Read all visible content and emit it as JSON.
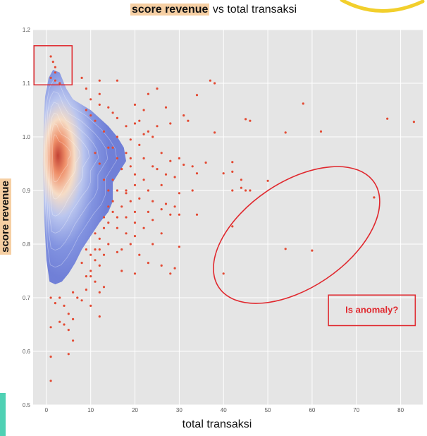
{
  "chart_data": {
    "type": "scatter",
    "title_highlight": "score revenue",
    "title_rest": "vs total transaksi",
    "xlabel": "total transaksi",
    "ylabel": "score revenue",
    "xlim": [
      -3,
      85
    ],
    "ylim": [
      0.5,
      1.2
    ],
    "xticks": [
      0,
      10,
      20,
      30,
      40,
      50,
      60,
      70,
      80
    ],
    "yticks": [
      0.5,
      0.6,
      0.7,
      0.8,
      0.9,
      1.0,
      1.1,
      1.2
    ],
    "density_overlay": "kde",
    "points": [
      [
        1,
        1.15
      ],
      [
        1.5,
        1.14
      ],
      [
        2,
        1.13
      ],
      [
        2,
        1.12
      ],
      [
        1,
        1.11
      ],
      [
        2,
        1.105
      ],
      [
        3,
        1.1
      ],
      [
        8,
        1.11
      ],
      [
        12,
        1.105
      ],
      [
        16,
        1.105
      ],
      [
        37,
        1.105
      ],
      [
        38,
        1.1
      ],
      [
        34,
        1.078
      ],
      [
        23,
        1.08
      ],
      [
        25,
        1.09
      ],
      [
        20,
        1.06
      ],
      [
        27,
        1.055
      ],
      [
        22,
        1.05
      ],
      [
        31,
        1.04
      ],
      [
        32,
        1.03
      ],
      [
        28,
        1.025
      ],
      [
        25,
        1.02
      ],
      [
        23,
        1.01
      ],
      [
        21,
        1.03
      ],
      [
        18,
        1.02
      ],
      [
        12,
        1.06
      ],
      [
        14,
        1.055
      ],
      [
        10,
        1.04
      ],
      [
        15,
        1.045
      ],
      [
        16,
        1.035
      ],
      [
        20,
        1.025
      ],
      [
        22,
        1.005
      ],
      [
        24,
        1.0
      ],
      [
        38,
        1.008
      ],
      [
        45,
        1.033
      ],
      [
        46,
        1.03
      ],
      [
        58,
        1.062
      ],
      [
        54,
        1.008
      ],
      [
        62,
        1.01
      ],
      [
        77,
        1.034
      ],
      [
        83,
        1.028
      ],
      [
        19,
        0.995
      ],
      [
        21,
        0.985
      ],
      [
        22,
        0.96
      ],
      [
        24,
        0.945
      ],
      [
        26,
        0.97
      ],
      [
        28,
        0.955
      ],
      [
        30,
        0.96
      ],
      [
        31,
        0.948
      ],
      [
        33,
        0.945
      ],
      [
        36,
        0.952
      ],
      [
        19,
        0.96
      ],
      [
        18,
        0.97
      ],
      [
        19,
        0.945
      ],
      [
        20,
        0.93
      ],
      [
        22,
        0.92
      ],
      [
        25,
        0.94
      ],
      [
        27,
        0.93
      ],
      [
        29,
        0.925
      ],
      [
        34,
        0.932
      ],
      [
        20,
        0.91
      ],
      [
        23,
        0.9
      ],
      [
        26,
        0.91
      ],
      [
        30,
        0.895
      ],
      [
        33,
        0.9
      ],
      [
        40,
        0.932
      ],
      [
        42,
        0.953
      ],
      [
        42,
        0.935
      ],
      [
        42,
        0.9
      ],
      [
        44,
        0.92
      ],
      [
        44,
        0.905
      ],
      [
        45,
        0.9
      ],
      [
        46,
        0.9
      ],
      [
        50,
        0.918
      ],
      [
        18,
        0.895
      ],
      [
        21,
        0.885
      ],
      [
        24,
        0.88
      ],
      [
        27,
        0.875
      ],
      [
        29,
        0.87
      ],
      [
        20,
        0.86
      ],
      [
        23,
        0.86
      ],
      [
        26,
        0.865
      ],
      [
        28,
        0.855
      ],
      [
        18,
        0.85
      ],
      [
        20,
        0.84
      ],
      [
        22,
        0.83
      ],
      [
        24,
        0.845
      ],
      [
        30,
        0.855
      ],
      [
        34,
        0.855
      ],
      [
        14,
        0.84
      ],
      [
        16,
        0.83
      ],
      [
        18,
        0.82
      ],
      [
        20,
        0.815
      ],
      [
        26,
        0.82
      ],
      [
        42,
        0.833
      ],
      [
        12,
        0.81
      ],
      [
        14,
        0.8
      ],
      [
        17,
        0.79
      ],
      [
        19,
        0.8
      ],
      [
        24,
        0.8
      ],
      [
        30,
        0.795
      ],
      [
        11,
        0.79
      ],
      [
        13,
        0.78
      ],
      [
        16,
        0.785
      ],
      [
        21,
        0.78
      ],
      [
        23,
        0.765
      ],
      [
        26,
        0.76
      ],
      [
        29,
        0.755
      ],
      [
        10,
        0.78
      ],
      [
        12,
        0.76
      ],
      [
        17,
        0.75
      ],
      [
        20,
        0.745
      ],
      [
        28,
        0.745
      ],
      [
        40,
        0.745
      ],
      [
        54,
        0.791
      ],
      [
        60,
        0.788
      ],
      [
        74,
        0.887
      ],
      [
        9,
        0.74
      ],
      [
        11,
        0.73
      ],
      [
        13,
        0.72
      ],
      [
        6,
        0.71
      ],
      [
        7,
        0.7
      ],
      [
        9,
        0.715
      ],
      [
        12,
        0.71
      ],
      [
        8,
        0.695
      ],
      [
        10,
        0.685
      ],
      [
        12,
        0.665
      ],
      [
        1,
        0.7
      ],
      [
        2,
        0.69
      ],
      [
        3,
        0.7
      ],
      [
        4,
        0.685
      ],
      [
        5,
        0.67
      ],
      [
        3,
        0.655
      ],
      [
        1,
        0.645
      ],
      [
        4,
        0.65
      ],
      [
        6,
        0.66
      ],
      [
        5,
        0.64
      ],
      [
        6,
        0.62
      ],
      [
        1,
        0.59
      ],
      [
        5,
        0.595
      ],
      [
        1,
        0.545
      ],
      [
        10,
        0.74
      ],
      [
        8,
        0.765
      ],
      [
        9,
        0.79
      ],
      [
        11,
        0.82
      ],
      [
        13,
        0.85
      ],
      [
        15,
        0.88
      ],
      [
        14,
        0.9
      ],
      [
        13,
        0.92
      ],
      [
        12,
        0.95
      ],
      [
        11,
        0.97
      ],
      [
        14,
        0.98
      ],
      [
        16,
        1.0
      ],
      [
        13,
        1.01
      ],
      [
        11,
        1.03
      ],
      [
        9,
        1.05
      ],
      [
        10,
        1.07
      ],
      [
        9,
        1.09
      ],
      [
        12,
        1.08
      ],
      [
        15,
        0.92
      ],
      [
        16,
        0.9
      ],
      [
        15,
        0.86
      ],
      [
        16,
        0.85
      ],
      [
        17,
        0.87
      ],
      [
        18,
        0.9
      ],
      [
        19,
        0.88
      ],
      [
        17,
        0.94
      ],
      [
        16,
        0.96
      ],
      [
        15,
        0.98
      ],
      [
        14,
        0.87
      ],
      [
        13,
        0.83
      ],
      [
        12,
        0.79
      ],
      [
        11,
        0.77
      ],
      [
        10,
        0.75
      ]
    ],
    "annotations": {
      "label": "Is anomaly?"
    }
  }
}
